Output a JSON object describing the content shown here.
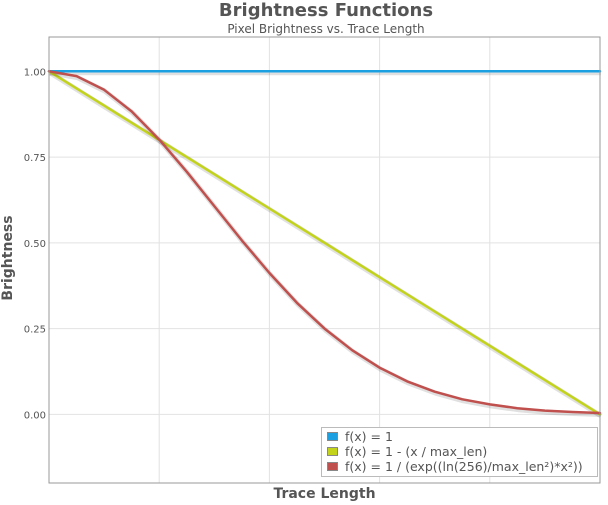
{
  "chart_data": {
    "type": "line",
    "title": "Brightness Functions",
    "subtitle": "Pixel Brightness vs. Trace Length",
    "xlabel": "Trace Length",
    "ylabel": "Brightness",
    "xlim": [
      0,
      1
    ],
    "ylim": [
      -0.2,
      1.1
    ],
    "y_ticks": [
      "1.00",
      "0.75",
      "0.50",
      "0.25",
      "0.00"
    ],
    "y_tick_values": [
      1.0,
      0.75,
      0.5,
      0.25,
      0.0
    ],
    "x_gridlines": [
      0.2,
      0.4,
      0.6,
      0.8
    ],
    "grid": true,
    "legend_position": "bottom-right",
    "series": [
      {
        "name": "f(x) = 1",
        "color": "#1ba1e2",
        "x": [
          0,
          0.1,
          0.2,
          0.3,
          0.4,
          0.5,
          0.6,
          0.7,
          0.8,
          0.9,
          1.0
        ],
        "y": [
          1,
          1,
          1,
          1,
          1,
          1,
          1,
          1,
          1,
          1,
          1
        ]
      },
      {
        "name": "f(x) = 1 - (x / max_len)",
        "color": "#c3d31a",
        "x": [
          0,
          0.1,
          0.2,
          0.3,
          0.4,
          0.5,
          0.6,
          0.7,
          0.8,
          0.9,
          1.0
        ],
        "y": [
          1.0,
          0.9,
          0.8,
          0.7,
          0.6,
          0.5,
          0.4,
          0.3,
          0.2,
          0.1,
          0.0
        ]
      },
      {
        "name": "f(x) = 1 / (exp((ln(256)/max_len²)*x²))",
        "color": "#c0504d",
        "x": [
          0,
          0.05,
          0.1,
          0.15,
          0.2,
          0.25,
          0.3,
          0.35,
          0.4,
          0.45,
          0.5,
          0.55,
          0.6,
          0.65,
          0.7,
          0.75,
          0.8,
          0.85,
          0.9,
          0.95,
          1.0
        ],
        "y": [
          1.0,
          0.986,
          0.946,
          0.883,
          0.801,
          0.707,
          0.607,
          0.507,
          0.412,
          0.325,
          0.25,
          0.187,
          0.136,
          0.096,
          0.066,
          0.044,
          0.029,
          0.018,
          0.011,
          0.007,
          0.004
        ]
      }
    ]
  }
}
